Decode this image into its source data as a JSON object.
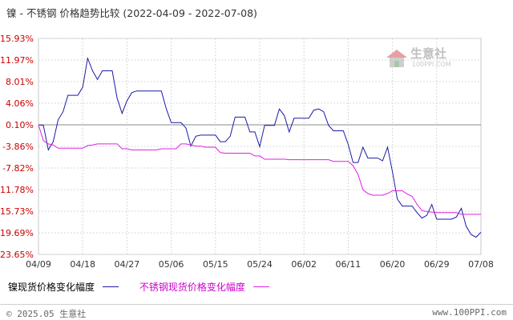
{
  "title": "镍 - 不锈钢 价格趋势比较",
  "date_range": "(2022-04-09 - 2022-07-08)",
  "watermark": {
    "text": "生意社",
    "sub": "100PPI.COM",
    "icon": "house-logo-icon"
  },
  "legend": {
    "series_a": "镍现货价格变化幅度",
    "series_b": "不锈钢现货价格变化幅度"
  },
  "footer": {
    "copyright": "© 2025.05 生意社",
    "site": "www.100PPI.com"
  },
  "colors": {
    "series_a": "#1a1aa8",
    "series_b": "#e020e0",
    "axis_label": "#cc0000",
    "grid": "#d8d8d8",
    "zero_line": "#888888"
  },
  "chart_data": {
    "type": "line",
    "y_ticks": [
      "15.93%",
      "11.97%",
      "8.01%",
      "4.06%",
      "0.10%",
      "-3.86%",
      "-7.82%",
      "-11.78%",
      "-15.73%",
      "-19.69%",
      "-23.65%"
    ],
    "y_tick_values": [
      15.93,
      11.97,
      8.01,
      4.06,
      0.1,
      -3.86,
      -7.82,
      -11.78,
      -15.73,
      -19.69,
      -23.65
    ],
    "ylim": [
      -23.65,
      15.93
    ],
    "x_ticks": [
      "04/09",
      "04/18",
      "04/27",
      "05/06",
      "05/15",
      "05/24",
      "06/02",
      "06/11",
      "06/20",
      "06/29",
      "07/08"
    ],
    "x_start": "04/09",
    "x_end": "07/08",
    "grid": true,
    "legend_position": "bottom",
    "series": [
      {
        "name": "镍现货价格变化幅度",
        "points": [
          [
            "04/09",
            0.1
          ],
          [
            "04/10",
            0.0
          ],
          [
            "04/11",
            -4.5
          ],
          [
            "04/12",
            -3.0
          ],
          [
            "04/13",
            1.0
          ],
          [
            "04/14",
            2.5
          ],
          [
            "04/15",
            5.5
          ],
          [
            "04/16",
            5.5
          ],
          [
            "04/17",
            5.5
          ],
          [
            "04/18",
            7.0
          ],
          [
            "04/19",
            12.3
          ],
          [
            "04/20",
            10.0
          ],
          [
            "04/21",
            8.4
          ],
          [
            "04/22",
            10.0
          ],
          [
            "04/23",
            10.0
          ],
          [
            "04/24",
            10.0
          ],
          [
            "04/25",
            5.0
          ],
          [
            "04/26",
            2.2
          ],
          [
            "04/27",
            4.5
          ],
          [
            "04/28",
            6.0
          ],
          [
            "04/29",
            6.3
          ],
          [
            "04/30",
            6.3
          ],
          [
            "05/01",
            6.3
          ],
          [
            "05/02",
            6.3
          ],
          [
            "05/03",
            6.3
          ],
          [
            "05/04",
            6.3
          ],
          [
            "05/05",
            3.0
          ],
          [
            "05/06",
            0.5
          ],
          [
            "05/07",
            0.5
          ],
          [
            "05/08",
            0.5
          ],
          [
            "05/09",
            -0.5
          ],
          [
            "05/10",
            -3.8
          ],
          [
            "05/11",
            -2.0
          ],
          [
            "05/12",
            -1.8
          ],
          [
            "05/13",
            -1.8
          ],
          [
            "05/14",
            -1.8
          ],
          [
            "05/15",
            -1.8
          ],
          [
            "05/16",
            -3.0
          ],
          [
            "05/17",
            -3.0
          ],
          [
            "05/18",
            -2.0
          ],
          [
            "05/19",
            1.5
          ],
          [
            "05/20",
            1.5
          ],
          [
            "05/21",
            1.5
          ],
          [
            "05/22",
            -1.2
          ],
          [
            "05/23",
            -1.2
          ],
          [
            "05/24",
            -3.9
          ],
          [
            "05/25",
            0.0
          ],
          [
            "05/26",
            0.0
          ],
          [
            "05/27",
            0.0
          ],
          [
            "05/28",
            3.0
          ],
          [
            "05/29",
            1.8
          ],
          [
            "05/30",
            -1.2
          ],
          [
            "05/31",
            1.3
          ],
          [
            "06/01",
            1.3
          ],
          [
            "06/02",
            1.3
          ],
          [
            "06/03",
            1.3
          ],
          [
            "06/04",
            2.8
          ],
          [
            "06/05",
            3.0
          ],
          [
            "06/06",
            2.5
          ],
          [
            "06/07",
            0.0
          ],
          [
            "06/08",
            -1.0
          ],
          [
            "06/09",
            -1.0
          ],
          [
            "06/10",
            -1.0
          ],
          [
            "06/11",
            -3.5
          ],
          [
            "06/12",
            -6.8
          ],
          [
            "06/13",
            -6.8
          ],
          [
            "06/14",
            -4.0
          ],
          [
            "06/15",
            -6.0
          ],
          [
            "06/16",
            -6.0
          ],
          [
            "06/17",
            -6.0
          ],
          [
            "06/18",
            -6.5
          ],
          [
            "06/19",
            -4.0
          ],
          [
            "06/20",
            -8.5
          ],
          [
            "06/21",
            -13.5
          ],
          [
            "06/22",
            -14.8
          ],
          [
            "06/23",
            -14.8
          ],
          [
            "06/24",
            -14.8
          ],
          [
            "06/25",
            -16.0
          ],
          [
            "06/26",
            -17.0
          ],
          [
            "06/27",
            -16.5
          ],
          [
            "06/28",
            -14.5
          ],
          [
            "06/29",
            -17.2
          ],
          [
            "06/30",
            -17.2
          ],
          [
            "07/01",
            -17.2
          ],
          [
            "07/02",
            -17.2
          ],
          [
            "07/03",
            -16.8
          ],
          [
            "07/04",
            -15.2
          ],
          [
            "07/05",
            -18.5
          ],
          [
            "07/06",
            -20.0
          ],
          [
            "07/07",
            -20.5
          ],
          [
            "07/08",
            -19.6
          ]
        ]
      },
      {
        "name": "不锈钢现货价格变化幅度",
        "points": [
          [
            "04/09",
            0.1
          ],
          [
            "04/10",
            -2.8
          ],
          [
            "04/11",
            -3.4
          ],
          [
            "04/12",
            -3.6
          ],
          [
            "04/13",
            -4.2
          ],
          [
            "04/14",
            -4.2
          ],
          [
            "04/15",
            -4.2
          ],
          [
            "04/16",
            -4.2
          ],
          [
            "04/17",
            -4.2
          ],
          [
            "04/18",
            -4.2
          ],
          [
            "04/19",
            -3.7
          ],
          [
            "04/20",
            -3.6
          ],
          [
            "04/21",
            -3.4
          ],
          [
            "04/22",
            -3.4
          ],
          [
            "04/23",
            -3.4
          ],
          [
            "04/24",
            -3.4
          ],
          [
            "04/25",
            -3.4
          ],
          [
            "04/26",
            -4.3
          ],
          [
            "04/27",
            -4.3
          ],
          [
            "04/28",
            -4.5
          ],
          [
            "04/29",
            -4.5
          ],
          [
            "04/30",
            -4.5
          ],
          [
            "05/01",
            -4.5
          ],
          [
            "05/02",
            -4.5
          ],
          [
            "05/03",
            -4.5
          ],
          [
            "05/04",
            -4.3
          ],
          [
            "05/05",
            -4.3
          ],
          [
            "05/06",
            -4.3
          ],
          [
            "05/07",
            -4.3
          ],
          [
            "05/08",
            -3.4
          ],
          [
            "05/09",
            -3.4
          ],
          [
            "05/10",
            -3.6
          ],
          [
            "05/11",
            -3.8
          ],
          [
            "05/12",
            -3.8
          ],
          [
            "05/13",
            -4.0
          ],
          [
            "05/14",
            -4.0
          ],
          [
            "05/15",
            -4.0
          ],
          [
            "05/16",
            -5.0
          ],
          [
            "05/17",
            -5.1
          ],
          [
            "05/18",
            -5.1
          ],
          [
            "05/19",
            -5.1
          ],
          [
            "05/20",
            -5.1
          ],
          [
            "05/21",
            -5.1
          ],
          [
            "05/22",
            -5.1
          ],
          [
            "05/23",
            -5.6
          ],
          [
            "05/24",
            -5.6
          ],
          [
            "05/25",
            -6.2
          ],
          [
            "05/26",
            -6.2
          ],
          [
            "05/27",
            -6.2
          ],
          [
            "05/28",
            -6.2
          ],
          [
            "05/29",
            -6.2
          ],
          [
            "05/30",
            -6.3
          ],
          [
            "05/31",
            -6.3
          ],
          [
            "06/01",
            -6.3
          ],
          [
            "06/02",
            -6.3
          ],
          [
            "06/03",
            -6.3
          ],
          [
            "06/04",
            -6.3
          ],
          [
            "06/05",
            -6.3
          ],
          [
            "06/06",
            -6.3
          ],
          [
            "06/07",
            -6.3
          ],
          [
            "06/08",
            -6.6
          ],
          [
            "06/09",
            -6.6
          ],
          [
            "06/10",
            -6.6
          ],
          [
            "06/11",
            -6.6
          ],
          [
            "06/12",
            -7.4
          ],
          [
            "06/13",
            -9.0
          ],
          [
            "06/14",
            -11.8
          ],
          [
            "06/15",
            -12.5
          ],
          [
            "06/16",
            -12.8
          ],
          [
            "06/17",
            -12.8
          ],
          [
            "06/18",
            -12.8
          ],
          [
            "06/19",
            -12.5
          ],
          [
            "06/20",
            -12.0
          ],
          [
            "06/21",
            -12.0
          ],
          [
            "06/22",
            -12.0
          ],
          [
            "06/23",
            -12.6
          ],
          [
            "06/24",
            -13.0
          ],
          [
            "06/25",
            -14.5
          ],
          [
            "06/26",
            -15.6
          ],
          [
            "06/27",
            -15.8
          ],
          [
            "06/28",
            -15.9
          ],
          [
            "06/29",
            -16.0
          ],
          [
            "06/30",
            -16.0
          ],
          [
            "07/01",
            -16.0
          ],
          [
            "07/02",
            -16.0
          ],
          [
            "07/03",
            -16.0
          ],
          [
            "07/04",
            -16.3
          ],
          [
            "07/05",
            -16.3
          ],
          [
            "07/06",
            -16.3
          ],
          [
            "07/07",
            -16.3
          ],
          [
            "07/08",
            -16.3
          ]
        ]
      }
    ]
  }
}
